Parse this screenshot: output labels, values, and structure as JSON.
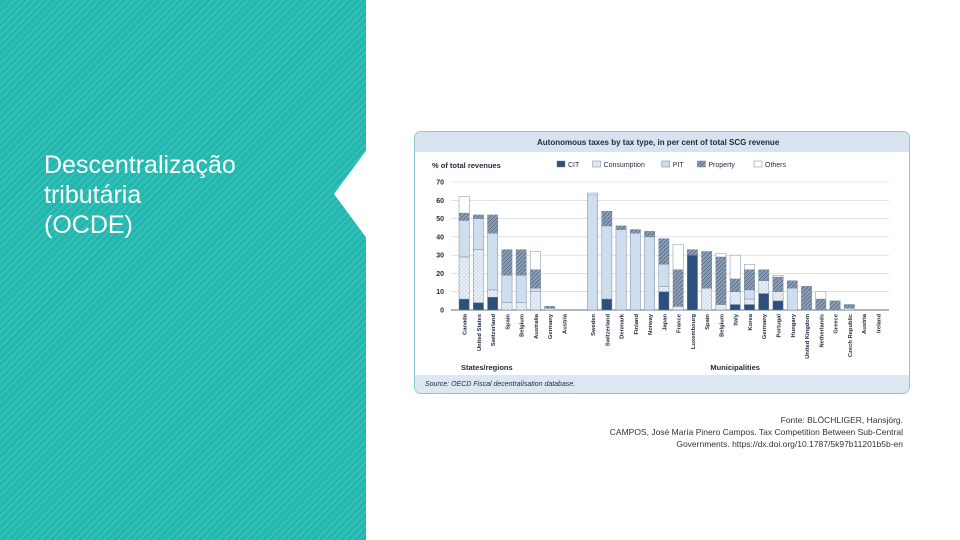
{
  "slide": {
    "title_lines": [
      "Descentralização",
      "tributária",
      "(OCDE)"
    ],
    "credit_lines": [
      "Fonte: BLÖCHLIGER, Hansjörg.",
      "CAMPOS, José María Pinero Campos. Tax Competition Between Sub-Central",
      "Governments. https://dx.doi.org/10.1787/5k97b11201b5b-en"
    ],
    "panel_color": "#22b8b0"
  },
  "chart_data": {
    "type": "bar",
    "stacked": true,
    "title": "Autonomous taxes by tax type, in per cent of total SCG revenue",
    "ylabel": "% of total revenues",
    "ylim": [
      0,
      70
    ],
    "yticks": [
      0,
      10,
      20,
      30,
      40,
      50,
      60,
      70
    ],
    "source": "Source: OECD Fiscal decentralisation database.",
    "legend_position": "top",
    "groups": [
      {
        "label": "States/regions",
        "categories": [
          "Canada",
          "United States",
          "Switzerland",
          "Spain",
          "Belgium",
          "Australia",
          "Germany",
          "Austria"
        ]
      },
      {
        "label": "Municipalities",
        "categories": [
          "Sweden",
          "Switzerland",
          "Denmark",
          "Finland",
          "Norway",
          "Japan",
          "France",
          "Luxembourg",
          "Spain",
          "Belgium",
          "Italy",
          "Korea",
          "Germany",
          "Portugal",
          "Hungary",
          "United Kingdom",
          "Netherlands",
          "Greece",
          "Czech Republic",
          "Austria",
          "Ireland"
        ]
      }
    ],
    "series": [
      {
        "name": "CIT",
        "color": "#2d4f7c",
        "values": [
          6,
          4,
          7,
          0,
          0,
          0,
          0,
          0,
          0,
          6,
          0,
          0,
          0,
          10,
          0,
          30,
          0,
          0,
          3,
          3,
          9,
          5,
          0,
          0,
          0,
          0,
          0,
          0,
          0
        ]
      },
      {
        "name": "Consumption",
        "color": "#dfe8f2",
        "values": [
          23,
          29,
          4,
          4,
          4,
          10,
          1,
          0,
          0,
          0,
          0,
          0,
          0,
          3,
          2,
          0,
          12,
          3,
          7,
          3,
          7,
          5,
          0,
          0,
          0,
          0,
          1,
          0,
          0
        ]
      },
      {
        "name": "PIT",
        "color": "#cfdeef",
        "values": [
          20,
          17,
          31,
          15,
          15,
          2,
          0,
          0,
          63,
          40,
          44,
          42,
          40,
          12,
          0,
          0,
          0,
          0,
          0,
          5,
          0,
          0,
          12,
          0,
          0,
          0,
          0,
          0,
          0
        ]
      },
      {
        "name": "Property",
        "color": "#8c9fb5",
        "values": [
          4,
          2,
          10,
          14,
          14,
          10,
          1,
          0,
          0,
          8,
          2,
          2,
          3,
          14,
          20,
          3,
          20,
          26,
          7,
          11,
          6,
          8,
          4,
          13,
          6,
          5,
          2,
          0,
          0
        ]
      },
      {
        "name": "Others",
        "color": "#ffffff",
        "values": [
          9,
          0,
          0,
          0,
          0,
          10,
          0,
          0,
          1,
          0,
          0,
          0,
          0,
          0,
          14,
          0,
          0,
          2,
          13,
          3,
          0,
          1,
          0,
          0,
          4,
          0,
          0,
          0,
          0
        ]
      }
    ]
  }
}
